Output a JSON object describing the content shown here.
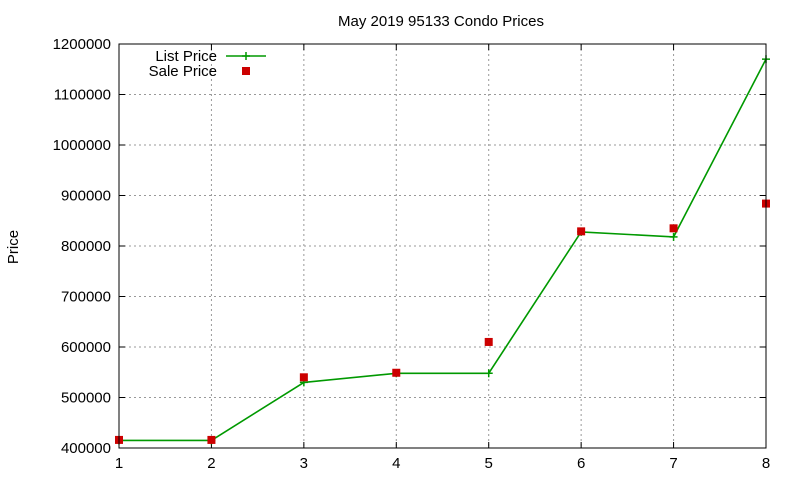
{
  "chart_data": {
    "type": "line",
    "title": "May 2019 95133 Condo Prices",
    "xlabel": "",
    "ylabel": "Price",
    "xlim": [
      1,
      8
    ],
    "ylim": [
      400000,
      1200000
    ],
    "xticks": [
      "1",
      "2",
      "3",
      "4",
      "5",
      "6",
      "7",
      "8"
    ],
    "yticks": [
      "400000",
      "500000",
      "600000",
      "700000",
      "800000",
      "900000",
      "1000000",
      "1100000",
      "1200000"
    ],
    "grid": true,
    "legend_position": "top-left",
    "x": [
      1,
      2,
      3,
      4,
      5,
      6,
      7,
      8
    ],
    "series": [
      {
        "name": "List Price",
        "style": "line-with-plus-markers",
        "color": "#009900",
        "values": [
          415000,
          415000,
          530000,
          548000,
          548000,
          828000,
          818000,
          1170000
        ]
      },
      {
        "name": "Sale Price",
        "style": "square-markers",
        "color": "#cc0000",
        "values": [
          416000,
          416000,
          540000,
          549000,
          610000,
          829000,
          835000,
          884000
        ]
      }
    ]
  }
}
